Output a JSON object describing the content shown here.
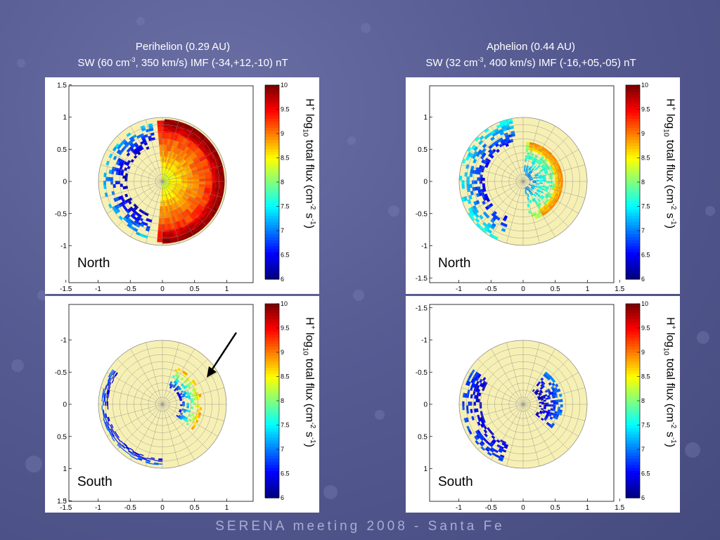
{
  "titles": {
    "left": {
      "line1": "Perihelion (0.29 AU)",
      "line2_a": "SW (60 cm",
      "line2_sup": "-3",
      "line2_b": ", 350 km/s) IMF (-34,+12,-10) nT"
    },
    "right": {
      "line1": "Aphelion (0.44 AU)",
      "line2_a": "SW (32 cm",
      "line2_sup": "-3",
      "line2_b": ", 400 km/s) IMF (-16,+05,-05) nT"
    }
  },
  "footer": "SERENA meeting 2008 - Santa Fe",
  "colorbar": {
    "label_a": "H",
    "label_sup1": "+",
    "label_b": " log",
    "label_sub": "10",
    "label_c": " total flux (cm",
    "label_sup2": "-2",
    "label_d": " s",
    "label_sup3": "-1",
    "label_e": ")",
    "ticks": [
      "6",
      "6.5",
      "7",
      "7.5",
      "8",
      "8.5",
      "9",
      "9.5",
      "10"
    ]
  },
  "colors": {
    "background": "#565b92",
    "disk": "#f7f0b4",
    "arrow": "#000000"
  },
  "chart_data": [
    {
      "type": "heatmap",
      "panel": "perihelion-north",
      "hemisphere_label": "North",
      "xlim": [
        -1.5,
        1.5
      ],
      "ylim": [
        -1.5,
        1.5
      ],
      "xticks": [
        "-1.5",
        "-1",
        "-0.5",
        "0",
        "0.5",
        "1"
      ],
      "yticks": [
        "1.5",
        "1",
        "0.5",
        "0",
        "-0.5",
        "-1"
      ],
      "colorbar_range": [
        6,
        10
      ],
      "regions": [
        {
          "rmin": 0.02,
          "rmax": 0.95,
          "a1": -95,
          "a2": 95,
          "v1": 8.3,
          "v2": 9.6
        },
        {
          "rmin": 0.78,
          "rmax": 0.97,
          "a1": -90,
          "a2": 88,
          "v1": 9.6,
          "v2": 10.0
        },
        {
          "rmin": 0.55,
          "rmax": 0.92,
          "a1": 100,
          "a2": 255,
          "v1": 6.1,
          "v2": 7.3,
          "sparse": true
        }
      ]
    },
    {
      "type": "heatmap",
      "panel": "aphelion-north",
      "hemisphere_label": "North",
      "xlim": [
        -1.5,
        1.5
      ],
      "ylim": [
        -1.5,
        1.5
      ],
      "xticks": [
        "-1",
        "-0.5",
        "0",
        "0.5",
        "1",
        "1.5"
      ],
      "yticks": [
        "1",
        "0.5",
        "0",
        "-0.5",
        "-1",
        "-1.5"
      ],
      "colorbar_range": [
        6,
        10
      ],
      "regions": [
        {
          "rmin": 0.1,
          "rmax": 0.62,
          "a1": -80,
          "a2": 85,
          "v1": 7.0,
          "v2": 8.3,
          "sparse": true
        },
        {
          "rmin": 0.5,
          "rmax": 0.62,
          "a1": -60,
          "a2": 80,
          "v1": 8.6,
          "v2": 9.0
        },
        {
          "rmin": 0.6,
          "rmax": 1.0,
          "a1": 100,
          "a2": 250,
          "v1": 6.4,
          "v2": 7.6,
          "sparse": true
        }
      ]
    },
    {
      "type": "heatmap",
      "panel": "perihelion-south",
      "hemisphere_label": "South",
      "xlim": [
        -1.5,
        1.5
      ],
      "ylim": [
        -1.5,
        1.5
      ],
      "xticks": [
        "-1.5",
        "-1",
        "-0.5",
        "0",
        "0.5",
        "1"
      ],
      "yticks": [
        "-1",
        "-0.5",
        "0",
        "0.5",
        "1",
        "1.5"
      ],
      "colorbar_range": [
        6,
        10
      ],
      "regions": [
        {
          "rmin": 0.28,
          "rmax": 0.62,
          "a1": -70,
          "a2": 40,
          "v1": 6.4,
          "v2": 8.9,
          "sparse": true
        },
        {
          "rmin": 0.85,
          "rmax": 0.95,
          "a1": 90,
          "a2": 215,
          "v1": 6.3,
          "v2": 6.9,
          "sparse": true
        }
      ],
      "annotation": "arrow"
    },
    {
      "type": "heatmap",
      "panel": "aphelion-south",
      "hemisphere_label": "South",
      "xlim": [
        -1.5,
        1.5
      ],
      "ylim": [
        -1.5,
        1.5
      ],
      "xticks": [
        "-1",
        "-0.5",
        "0",
        "0.5",
        "1",
        "1.5"
      ],
      "yticks": [
        "-1.5",
        "-1",
        "-0.5",
        "0",
        "0.5",
        "1"
      ],
      "colorbar_range": [
        6,
        10
      ],
      "regions": [
        {
          "rmin": 0.25,
          "rmax": 0.62,
          "a1": -55,
          "a2": 40,
          "v1": 6.2,
          "v2": 7.0,
          "sparse": true
        },
        {
          "rmin": 0.65,
          "rmax": 0.95,
          "a1": 110,
          "a2": 215,
          "v1": 6.3,
          "v2": 6.8,
          "sparse": true
        }
      ]
    }
  ]
}
